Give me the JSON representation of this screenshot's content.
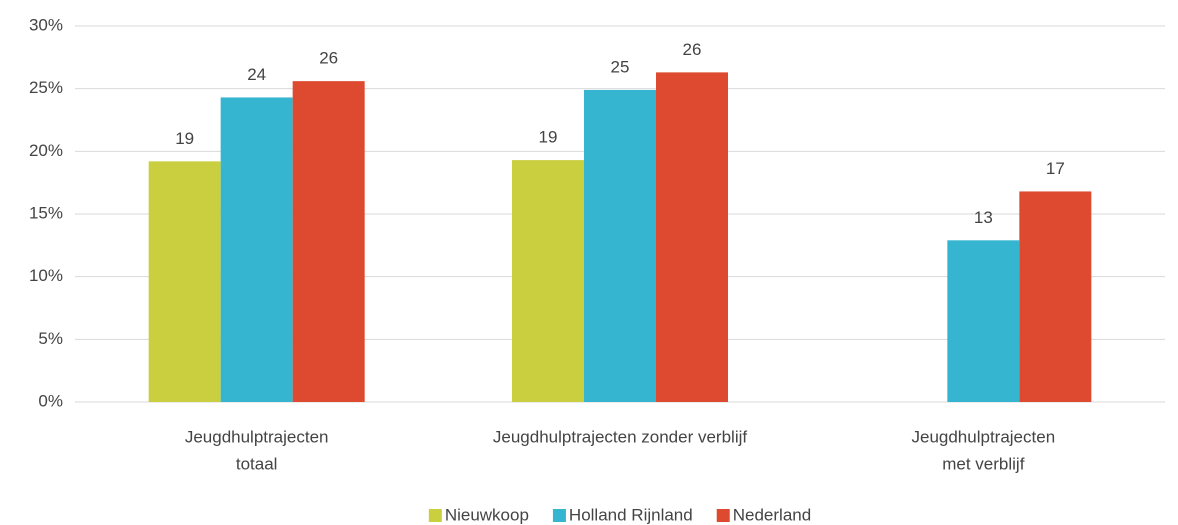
{
  "chart_data": {
    "type": "bar",
    "categories": [
      [
        "Jeugdhulptrajecten",
        "totaal"
      ],
      [
        "Jeugdhulptrajecten zonder verblijf"
      ],
      [
        "Jeugdhulptrajecten",
        "met verblijf"
      ]
    ],
    "series": [
      {
        "name": "Nieuwkoop",
        "color": "#c9cf3e",
        "values": [
          19.2,
          19.3,
          null
        ],
        "value_labels": [
          "19",
          "19",
          null
        ]
      },
      {
        "name": "Holland Rijnland",
        "color": "#35b5d0",
        "values": [
          24.3,
          24.9,
          12.9
        ],
        "value_labels": [
          "24",
          "25",
          "13"
        ]
      },
      {
        "name": "Nederland",
        "color": "#dd4a30",
        "values": [
          25.6,
          26.3,
          16.8
        ],
        "value_labels": [
          "26",
          "26",
          "17"
        ]
      }
    ],
    "ylim": [
      0,
      30
    ],
    "yticks": [
      {
        "value": 0,
        "label": "0%"
      },
      {
        "value": 5,
        "label": "5%"
      },
      {
        "value": 10,
        "label": "10%"
      },
      {
        "value": 15,
        "label": "15%"
      },
      {
        "value": 20,
        "label": "20%"
      },
      {
        "value": 25,
        "label": "25%"
      },
      {
        "value": 30,
        "label": "30%"
      }
    ],
    "grid": true,
    "legend": "bottom"
  }
}
